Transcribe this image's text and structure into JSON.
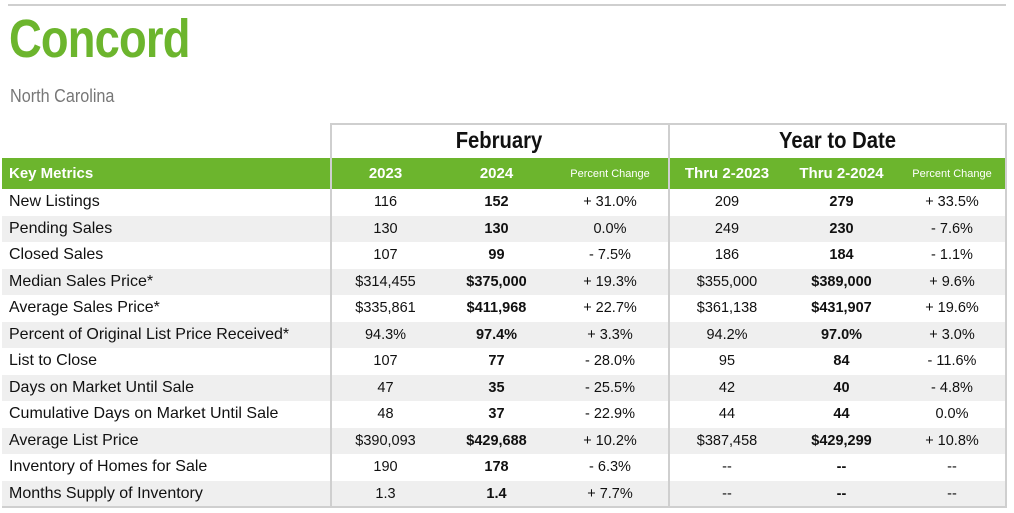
{
  "header": {
    "title": "Concord",
    "subtitle": "North Carolina"
  },
  "table": {
    "groups": [
      "February",
      "Year to Date"
    ],
    "columns": [
      "Key Metrics",
      "2023",
      "2024",
      "Percent Change",
      "Thru 2-2023",
      "Thru 2-2024",
      "Percent Change"
    ],
    "rows": [
      [
        "New Listings",
        "116",
        "152",
        "+ 31.0%",
        "209",
        "279",
        "+ 33.5%"
      ],
      [
        "Pending Sales",
        "130",
        "130",
        "0.0%",
        "249",
        "230",
        "- 7.6%"
      ],
      [
        "Closed Sales",
        "107",
        "99",
        "- 7.5%",
        "186",
        "184",
        "- 1.1%"
      ],
      [
        "Median Sales Price*",
        "$314,455",
        "$375,000",
        "+ 19.3%",
        "$355,000",
        "$389,000",
        "+ 9.6%"
      ],
      [
        "Average Sales Price*",
        "$335,861",
        "$411,968",
        "+ 22.7%",
        "$361,138",
        "$431,907",
        "+ 19.6%"
      ],
      [
        "Percent of Original List Price Received*",
        "94.3%",
        "97.4%",
        "+ 3.3%",
        "94.2%",
        "97.0%",
        "+ 3.0%"
      ],
      [
        "List to Close",
        "107",
        "77",
        "- 28.0%",
        "95",
        "84",
        "- 11.6%"
      ],
      [
        "Days on Market Until Sale",
        "47",
        "35",
        "- 25.5%",
        "42",
        "40",
        "- 4.8%"
      ],
      [
        "Cumulative Days on Market Until Sale",
        "48",
        "37",
        "- 22.9%",
        "44",
        "44",
        "0.0%"
      ],
      [
        "Average List Price",
        "$390,093",
        "$429,688",
        "+ 10.2%",
        "$387,458",
        "$429,299",
        "+ 10.8%"
      ],
      [
        "Inventory of Homes for Sale",
        "190",
        "178",
        "- 6.3%",
        "--",
        "--",
        "--"
      ],
      [
        "Months Supply of Inventory",
        "1.3",
        "1.4",
        "+ 7.7%",
        "--",
        "--",
        "--"
      ]
    ]
  }
}
